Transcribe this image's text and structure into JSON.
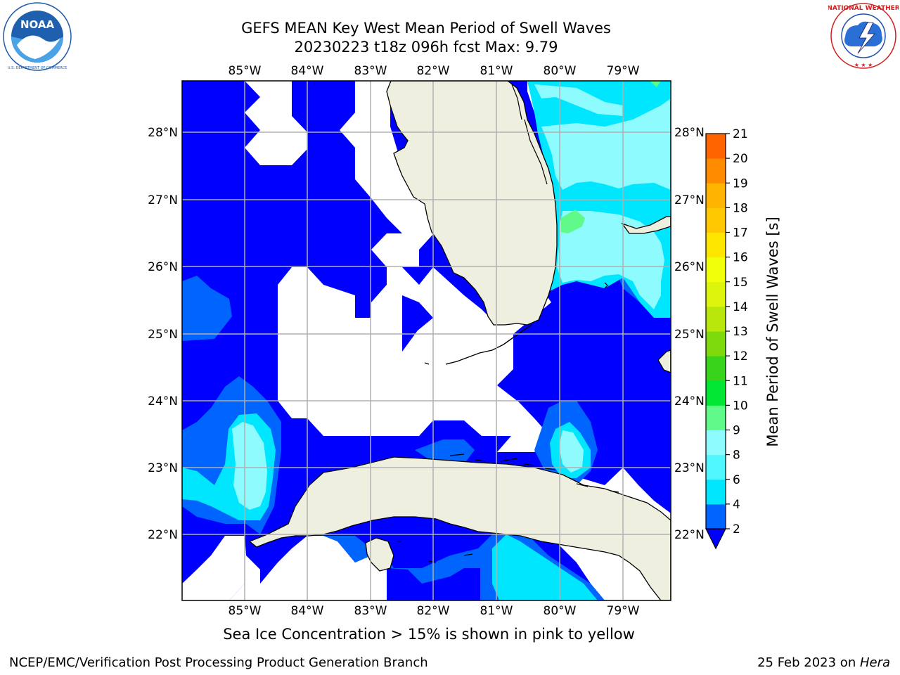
{
  "title": {
    "line1": "GEFS MEAN Key West Mean Period of Swell Waves",
    "line2": "20230223 t18z 096h fcst   Max: 9.79"
  },
  "logos": {
    "left": {
      "text": "NOAA",
      "ring_text": "NATIONAL OCEANIC AND ATMOSPHERIC ADMINISTRATION · U.S. DEPARTMENT OF COMMERCE"
    },
    "right": {
      "ring_text": "NATIONAL WEATHER SERVICE"
    }
  },
  "map": {
    "lon_labels": [
      "85°W",
      "84°W",
      "83°W",
      "82°W",
      "81°W",
      "80°W",
      "79°W"
    ],
    "lat_labels": [
      "28°N",
      "27°N",
      "26°N",
      "25°N",
      "24°N",
      "23°N",
      "22°N"
    ],
    "colors": {
      "land": "#efefdf",
      "ocean_missing": "#ffffff",
      "gridline": "#b0b0b0"
    }
  },
  "colorbar": {
    "label": "Mean Period of Swell Waves [s]",
    "ticks": [
      "2",
      "4",
      "6",
      "8",
      "9",
      "10",
      "11",
      "12",
      "13",
      "14",
      "15",
      "16",
      "17",
      "18",
      "19",
      "20",
      "21"
    ],
    "colors": [
      "#0000ff",
      "#0064ff",
      "#00e6ff",
      "#51f7ff",
      "#8efbfe",
      "#5ffa89",
      "#00e632",
      "#37d41b",
      "#7ed90d",
      "#b9e60b",
      "#dcf50a",
      "#f0ff0a",
      "#ffe600",
      "#ffc800",
      "#ffb400",
      "#ff8c00",
      "#ff6400",
      "#ff3c00",
      "#ff1e00",
      "#ff0000"
    ]
  },
  "caption": "Sea Ice Concentration > 15% is shown in pink to yellow",
  "footer": {
    "left": "NCEP/EMC/Verification Post Processing Product Generation Branch",
    "right_prefix": "25 Feb 2023 on ",
    "right_italic": "Hera"
  }
}
